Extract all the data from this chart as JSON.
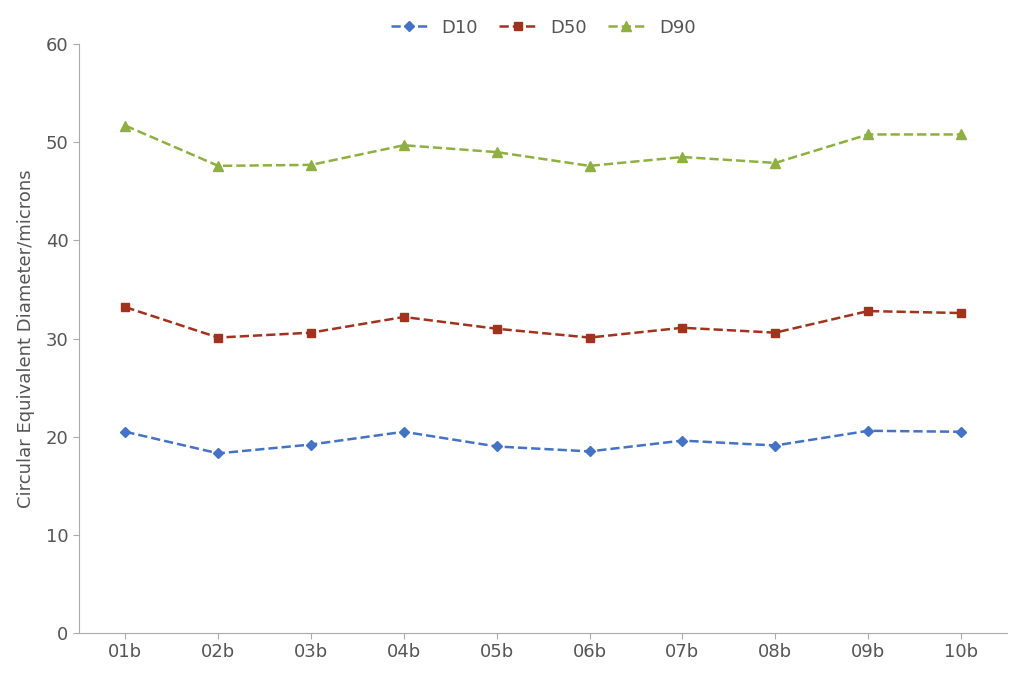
{
  "categories": [
    "01b",
    "02b",
    "03b",
    "04b",
    "05b",
    "06b",
    "07b",
    "08b",
    "09b",
    "10b"
  ],
  "D10": [
    20.5,
    18.3,
    19.2,
    20.5,
    19.0,
    18.5,
    19.6,
    19.1,
    20.6,
    20.5
  ],
  "D50": [
    33.2,
    30.1,
    30.6,
    32.2,
    31.0,
    30.1,
    31.1,
    30.6,
    32.8,
    32.6
  ],
  "D90": [
    51.7,
    47.6,
    47.7,
    49.7,
    49.0,
    47.6,
    48.5,
    47.9,
    50.8,
    50.8
  ],
  "D10_color": "#4472C4",
  "D50_color": "#A0321E",
  "D90_color": "#8DB040",
  "ylabel": "Circular Equivalent Diameter/microns",
  "ylim": [
    0,
    60
  ],
  "yticks": [
    0,
    10,
    20,
    30,
    40,
    50,
    60
  ],
  "legend_labels": [
    "D10",
    "D50",
    "D90"
  ],
  "background_color": "#FFFFFF",
  "spine_color": "#AAAAAA",
  "tick_color": "#555555"
}
